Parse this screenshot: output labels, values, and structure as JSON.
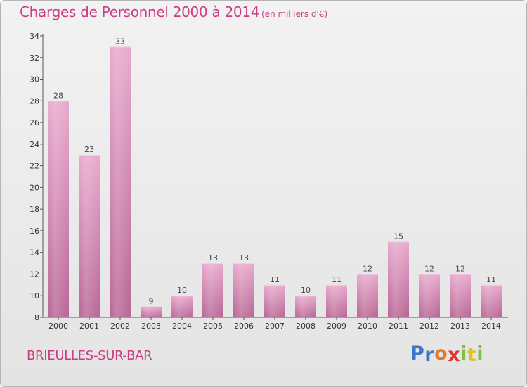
{
  "title": "Charges de Personnel 2000 à 2014",
  "subtitle": "(en milliers d'€)",
  "commune": "BRIEULLES-SUR-BAR",
  "logo": {
    "letters": [
      "P",
      "r",
      "o",
      "x",
      "i",
      "t",
      "i"
    ],
    "colors": [
      "#3a78c7",
      "#3a78c7",
      "#e07b2a",
      "#e0342f",
      "#7cc142",
      "#e0c12a",
      "#7cc142"
    ]
  },
  "colors": {
    "accent": "#cc3d84",
    "bar_top": "#e8a9cd",
    "bar_bottom": "#b86695",
    "axis": "#555555"
  },
  "chart_data": {
    "type": "bar",
    "categories": [
      "2000",
      "2001",
      "2002",
      "2003",
      "2004",
      "2005",
      "2006",
      "2007",
      "2008",
      "2009",
      "2010",
      "2011",
      "2012",
      "2013",
      "2014"
    ],
    "values": [
      28,
      23,
      33,
      9,
      10,
      13,
      13,
      11,
      10,
      11,
      12,
      15,
      12,
      12,
      11
    ],
    "ylim": [
      8,
      34
    ],
    "yticks": [
      8,
      10,
      12,
      14,
      16,
      18,
      20,
      22,
      24,
      26,
      28,
      30,
      32,
      34
    ],
    "xlabel": "",
    "ylabel": "",
    "grid": false,
    "data_labels": true
  }
}
